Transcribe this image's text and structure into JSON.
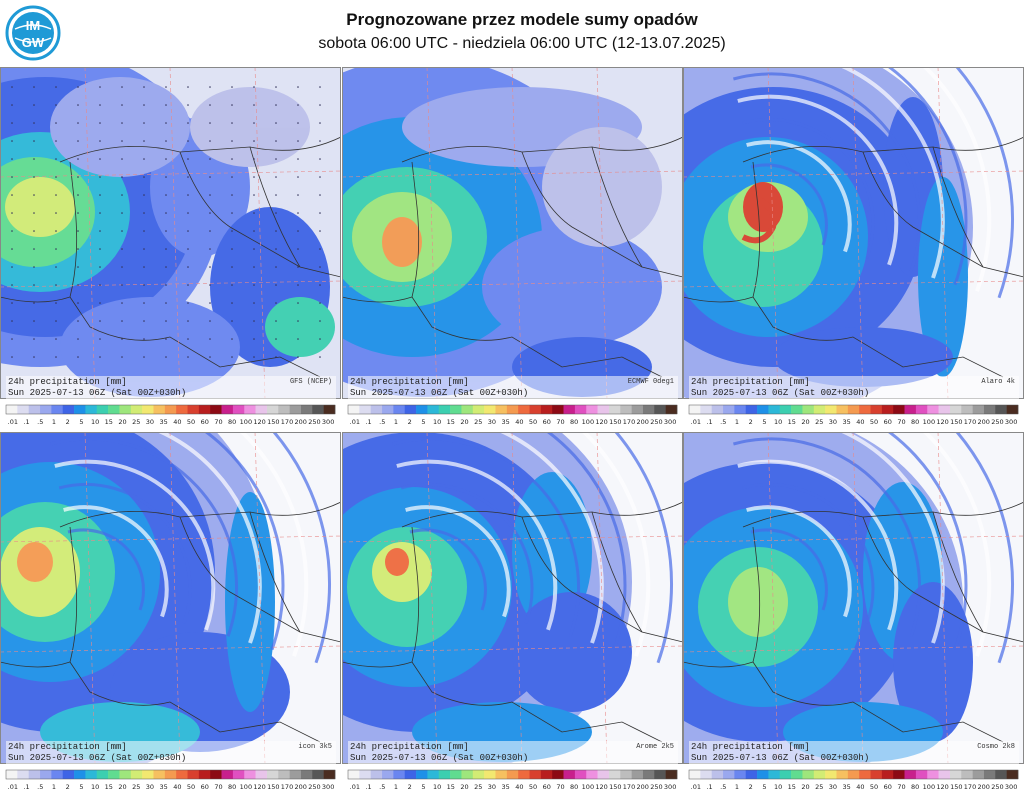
{
  "header": {
    "logo_text_top": "IM",
    "logo_text_bottom": "GW",
    "title": "Prognozowane przez modele sumy opadów",
    "subtitle": "sobota 06:00 UTC - niedziela 06:00 UTC (12-13.07.2025)"
  },
  "colors": {
    "legend": [
      "#f4f4f4",
      "#dcdcf0",
      "#bcc0ea",
      "#9aa8ee",
      "#6a86f0",
      "#3e64e6",
      "#1e90e8",
      "#2cb8d8",
      "#3ccfb0",
      "#60dc90",
      "#9ee67c",
      "#d2ec74",
      "#f2e870",
      "#f6c060",
      "#f49a50",
      "#ee6a3e",
      "#d8402e",
      "#b81e1e",
      "#8c0a14",
      "#c8208c",
      "#e050c0",
      "#ee90e0",
      "#e8c4ea",
      "#d6d6d6",
      "#bdbdbd",
      "#9c9c9c",
      "#7a7a7a",
      "#565656",
      "#4a2c20"
    ],
    "background_precip": "#dfe3f4",
    "border_line": "#333333",
    "grid_line": "#e88a8a"
  },
  "legend": {
    "ticks": [
      ".01",
      ".1",
      ".5",
      "1",
      "2",
      "5",
      "10",
      "15",
      "20",
      "25",
      "30",
      "35",
      "40",
      "50",
      "60",
      "70",
      "80",
      "100",
      "120",
      "150",
      "170",
      "200",
      "250",
      "300"
    ]
  },
  "panels": [
    {
      "model": "GFS (NCEP)",
      "label_line1": "24h precipitation   [mm]",
      "label_line2": "Sun 2025-07-13 06Z (Sat 00Z+030h)"
    },
    {
      "model": "ECMWF 0deg1",
      "label_line1": "24h precipitation   [mm]",
      "label_line2": "Sun 2025-07-13 06Z (Sat 00Z+030h)"
    },
    {
      "model": "Alaro 4k",
      "label_line1": "24h precipitation   [mm]",
      "label_line2": "Sun 2025-07-13 06Z (Sat 00Z+030h)"
    },
    {
      "model": "icon 3k5",
      "label_line1": "24h precipitation   [mm]",
      "label_line2": "Sun 2025-07-13 06Z (Sat 00Z+030h)"
    },
    {
      "model": "Arome 2k5",
      "label_line1": "24h precipitation   [mm]",
      "label_line2": "Sun 2025-07-13 06Z (Sat 00Z+030h)"
    },
    {
      "model": "Cosmo 2k8",
      "label_line1": "24h precipitation   [mm]",
      "label_line2": "Sun 2025-07-13 06Z (Sat 00Z+030h)"
    }
  ]
}
